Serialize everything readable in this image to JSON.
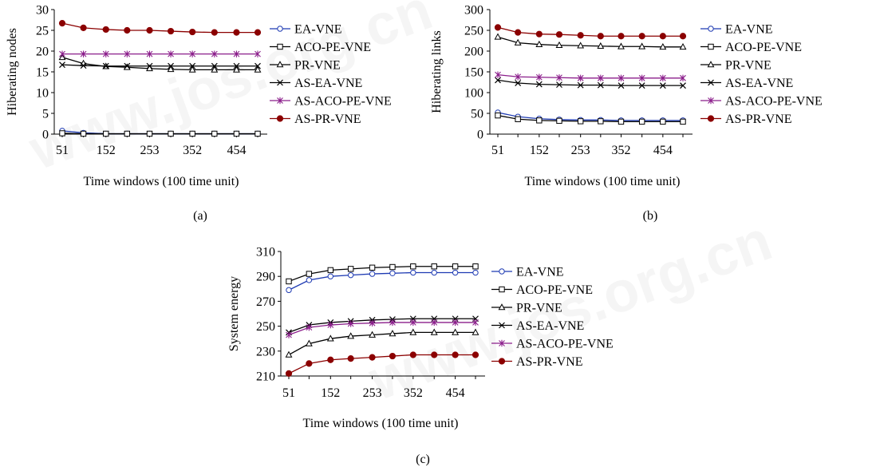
{
  "watermark": "www.jos.org.cn",
  "series_style": [
    {
      "color": "#1f3bb3",
      "marker": "circle-open"
    },
    {
      "color": "#000000",
      "marker": "square-open"
    },
    {
      "color": "#000000",
      "marker": "triangle-open"
    },
    {
      "color": "#000000",
      "marker": "x"
    },
    {
      "color": "#8b1e8b",
      "marker": "asterisk"
    },
    {
      "color": "#8b0000",
      "marker": "circle-filled"
    }
  ],
  "chart_data": [
    {
      "type": "line",
      "panel_label": "(a)",
      "xlabel": "Time windows (100 time unit)",
      "ylabel": "Hiberating nodes",
      "x": [
        51,
        100,
        152,
        201,
        253,
        302,
        352,
        403,
        454,
        503
      ],
      "x_ticks": [
        51,
        152,
        253,
        352,
        454
      ],
      "ylim": [
        0,
        30
      ],
      "y_ticks": [
        0,
        5,
        10,
        15,
        20,
        25,
        30
      ],
      "legend_position": "right",
      "series": [
        {
          "name": "EA-VNE",
          "values": [
            0.8,
            0.3,
            0.1,
            0.1,
            0.1,
            0.1,
            0.1,
            0.1,
            0.1,
            0.1
          ]
        },
        {
          "name": "ACO-PE-VNE",
          "values": [
            0.2,
            0.1,
            0.1,
            0.1,
            0.1,
            0.1,
            0.1,
            0.1,
            0.1,
            0.1
          ]
        },
        {
          "name": "PR-VNE",
          "values": [
            18.5,
            17.0,
            16.3,
            16.1,
            15.8,
            15.6,
            15.5,
            15.5,
            15.5,
            15.5
          ]
        },
        {
          "name": "AS-EA-VNE",
          "values": [
            16.7,
            16.5,
            16.4,
            16.4,
            16.4,
            16.4,
            16.4,
            16.4,
            16.4,
            16.4
          ]
        },
        {
          "name": "AS-ACO-PE-VNE",
          "values": [
            19.3,
            19.3,
            19.3,
            19.3,
            19.3,
            19.3,
            19.3,
            19.3,
            19.3,
            19.3
          ]
        },
        {
          "name": "AS-PR-VNE",
          "values": [
            26.7,
            25.6,
            25.2,
            25.0,
            25.0,
            24.8,
            24.6,
            24.5,
            24.5,
            24.5
          ]
        }
      ]
    },
    {
      "type": "line",
      "panel_label": "(b)",
      "xlabel": "Time windows (100 time unit)",
      "ylabel": "Hiberating links",
      "x": [
        51,
        100,
        152,
        201,
        253,
        302,
        352,
        403,
        454,
        503
      ],
      "x_ticks": [
        51,
        152,
        253,
        352,
        454
      ],
      "ylim": [
        0,
        300
      ],
      "y_ticks": [
        0,
        50,
        100,
        150,
        200,
        250,
        300
      ],
      "legend_position": "right",
      "series": [
        {
          "name": "EA-VNE",
          "values": [
            52,
            42,
            37,
            35,
            34,
            34,
            33,
            33,
            33,
            33
          ]
        },
        {
          "name": "ACO-PE-VNE",
          "values": [
            45,
            36,
            33,
            32,
            31,
            31,
            30,
            30,
            30,
            30
          ]
        },
        {
          "name": "PR-VNE",
          "values": [
            234,
            220,
            216,
            214,
            213,
            212,
            211,
            211,
            210,
            210
          ]
        },
        {
          "name": "AS-EA-VNE",
          "values": [
            130,
            123,
            120,
            119,
            118,
            118,
            117,
            117,
            117,
            117
          ]
        },
        {
          "name": "AS-ACO-PE-VNE",
          "values": [
            143,
            138,
            137,
            136,
            135,
            135,
            135,
            135,
            135,
            135
          ]
        },
        {
          "name": "AS-PR-VNE",
          "values": [
            257,
            245,
            241,
            240,
            238,
            236,
            236,
            236,
            236,
            236
          ]
        }
      ]
    },
    {
      "type": "line",
      "panel_label": "(c)",
      "xlabel": "Time windows (100 time unit)",
      "ylabel": "System energy",
      "x": [
        51,
        100,
        152,
        201,
        253,
        302,
        352,
        403,
        454,
        503
      ],
      "x_ticks": [
        51,
        152,
        253,
        352,
        454
      ],
      "ylim": [
        210,
        310
      ],
      "y_ticks": [
        210,
        230,
        250,
        270,
        290,
        310
      ],
      "legend_position": "right",
      "series": [
        {
          "name": "EA-VNE",
          "values": [
            279,
            287,
            290,
            291,
            292,
            292.5,
            293,
            293,
            293,
            293
          ]
        },
        {
          "name": "ACO-PE-VNE",
          "values": [
            286,
            292,
            295,
            296,
            297,
            297.5,
            298,
            298,
            298,
            298
          ]
        },
        {
          "name": "PR-VNE",
          "values": [
            227,
            236,
            240,
            242,
            243,
            244,
            245,
            245,
            245,
            245
          ]
        },
        {
          "name": "AS-EA-VNE",
          "values": [
            245,
            251,
            253,
            254,
            255,
            255.5,
            256,
            256,
            256,
            256
          ]
        },
        {
          "name": "AS-ACO-PE-VNE",
          "values": [
            243,
            249,
            251,
            252,
            252.5,
            253,
            253,
            253,
            253,
            253
          ]
        },
        {
          "name": "AS-PR-VNE",
          "values": [
            212,
            220,
            223,
            224,
            225,
            226,
            227,
            227,
            227,
            227
          ]
        }
      ]
    }
  ]
}
